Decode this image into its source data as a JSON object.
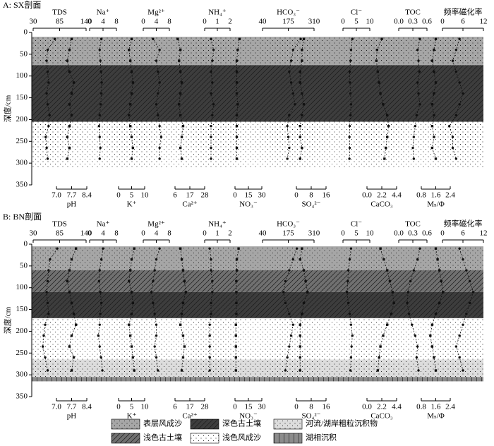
{
  "variables": [
    {
      "name": "TDS",
      "position": "top",
      "xlim": [
        30,
        140
      ],
      "xticks": [
        30,
        85,
        140
      ]
    },
    {
      "name": "Na⁺",
      "position": "top",
      "xlim": [
        0,
        8
      ],
      "xticks": [
        0,
        4,
        8
      ]
    },
    {
      "name": "Mg²⁺",
      "position": "top",
      "xlim": [
        0,
        8
      ],
      "xticks": [
        0,
        4,
        8
      ]
    },
    {
      "name": "NH₄⁺",
      "position": "top",
      "xlim": [
        0,
        2
      ],
      "xticks": [
        0,
        1,
        2
      ]
    },
    {
      "name": "HCO₃⁻",
      "position": "top",
      "xlim": [
        40,
        310
      ],
      "xticks": [
        40,
        175,
        310
      ]
    },
    {
      "name": "Cl⁻",
      "position": "top",
      "xlim": [
        0,
        10
      ],
      "xticks": [
        0,
        5,
        10
      ]
    },
    {
      "name": "TOC",
      "position": "top",
      "xlim": [
        0,
        0.6
      ],
      "xticks": [
        {
          "value": 0,
          "label": "0.0"
        },
        0.3,
        0.6
      ]
    },
    {
      "name": "频率磁化率",
      "position": "top",
      "xlim": [
        0,
        12
      ],
      "xticks": [
        0,
        6,
        12
      ]
    },
    {
      "name": "pH",
      "position": "bottom",
      "xlim": [
        7,
        8.4
      ],
      "xticks": [
        {
          "value": 7,
          "label": "7.0"
        },
        7.7,
        8.4
      ]
    },
    {
      "name": "K⁺",
      "position": "bottom",
      "xlim": [
        0,
        10
      ],
      "xticks": [
        0,
        5,
        10
      ]
    },
    {
      "name": "Ca²⁺",
      "position": "bottom",
      "xlim": [
        6,
        28
      ],
      "xticks": [
        6,
        17,
        28
      ]
    },
    {
      "name": "NO₃⁻",
      "position": "bottom",
      "xlim": [
        0,
        30
      ],
      "xticks": [
        0,
        15,
        30
      ]
    },
    {
      "name": "SO₄²⁻",
      "position": "bottom",
      "xlim": [
        0,
        16
      ],
      "xticks": [
        0,
        8,
        16
      ]
    },
    {
      "name": "CaCO₃",
      "position": "bottom",
      "xlim": [
        0,
        4.4
      ],
      "xticks": [
        {
          "value": 0,
          "label": "0.0"
        },
        2.2,
        4.4
      ]
    },
    {
      "name": "Mₛ/Φ",
      "position": "bottom",
      "xlim": [
        0.8,
        2.4
      ],
      "xticks": [
        0.8,
        1.6,
        2.4
      ]
    }
  ],
  "legend": [
    {
      "name": "表层风成沙",
      "color": "#a6a6a6",
      "pattern": "dots"
    },
    {
      "name": "深色古土壤",
      "color": "#3d3d3d",
      "pattern": "hatch"
    },
    {
      "name": "河流/湖岸粗粒沉积物",
      "color": "#dcdcdc",
      "pattern": "dots"
    },
    {
      "name": "浅色古土壤",
      "color": "#707070",
      "pattern": "hatch"
    },
    {
      "name": "浅色风成沙",
      "color": "#ffffff",
      "pattern": "dots"
    },
    {
      "name": "湖相沉积",
      "color": "#8c8c8c",
      "pattern": "vertical"
    }
  ],
  "marker_color": "#111111",
  "chart_data": [
    {
      "type": "profile",
      "title": "A: SX剖面",
      "ylabel": "深度/cm",
      "ylim": [
        0,
        350
      ],
      "yticks": [
        0,
        50,
        100,
        150,
        200,
        250,
        300,
        350
      ],
      "layers": [
        {
          "facies": "表层风成沙",
          "top": 10,
          "bottom": 75
        },
        {
          "facies": "深色古土壤",
          "top": 75,
          "bottom": 205
        },
        {
          "facies": "浅色风成沙",
          "top": 205,
          "bottom": 310
        }
      ],
      "depths": [
        15,
        40,
        65,
        90,
        115,
        140,
        165,
        190,
        215,
        240,
        265,
        290
      ],
      "series": [
        {
          "values": [
            75,
            60,
            58,
            60,
            62,
            58,
            60,
            64,
            62,
            56,
            58,
            60
          ]
        },
        {
          "values": [
            3.5,
            3.0,
            3.2,
            3.4,
            3.6,
            3.5,
            3.3,
            3.0,
            2.8,
            3.0,
            3.2,
            3.0
          ]
        },
        {
          "values": [
            3,
            5,
            4,
            4.5,
            5,
            4.5,
            4,
            4.5,
            5,
            5.5,
            5,
            5
          ]
        },
        {
          "values": [
            0.5,
            0.7,
            0.6,
            0.5,
            0.6,
            0.5,
            0.7,
            0.6,
            0.5,
            0.5,
            0.5,
            0.5
          ]
        },
        {
          "values": [
            240,
            200,
            190,
            180,
            190,
            200,
            210,
            180,
            170,
            175,
            180,
            170
          ]
        },
        {
          "values": [
            3.5,
            3.0,
            2.8,
            2.5,
            2.6,
            2.8,
            3.0,
            2.8,
            2.5,
            2.4,
            2.5,
            2.4
          ]
        },
        {
          "values": [
            0.45,
            0.4,
            0.42,
            0.44,
            0.4,
            0.42,
            0.45,
            0.38,
            0.35,
            0.32,
            0.3,
            0.32
          ]
        },
        {
          "values": [
            5,
            4,
            3,
            4,
            5,
            6,
            5,
            4,
            2,
            3,
            3,
            4
          ]
        },
        {
          "values": [
            7.7,
            7.6,
            7.5,
            7.6,
            7.8,
            7.7,
            7.6,
            7.7,
            7.6,
            7.5,
            7.6,
            7.5
          ]
        },
        {
          "values": [
            5,
            4,
            4.5,
            5,
            5.5,
            5,
            4.5,
            4,
            4.5,
            5,
            5.5,
            5
          ]
        },
        {
          "values": [
            8,
            10,
            9,
            10,
            11,
            10,
            9,
            10,
            12,
            11,
            10,
            11
          ]
        },
        {
          "values": [
            5,
            3,
            2,
            2,
            2,
            2,
            3,
            2,
            2,
            2,
            2,
            2
          ]
        },
        {
          "values": [
            4,
            3,
            3,
            2,
            2,
            3,
            4,
            3,
            2,
            2,
            3,
            2
          ]
        },
        {
          "values": [
            2.2,
            1.5,
            1.4,
            1.6,
            1.8,
            2.0,
            2.4,
            3.0,
            3.2,
            3.0,
            2.8,
            2.6
          ]
        },
        {
          "values": [
            1.6,
            1.5,
            1.4,
            1.5,
            1.6,
            1.5,
            1.4,
            1.5,
            1.4,
            1.5,
            1.4,
            1.6
          ]
        }
      ]
    },
    {
      "type": "profile",
      "title": "B: BN剖面",
      "ylabel": "深度/cm",
      "ylim": [
        0,
        350
      ],
      "yticks": [
        0,
        50,
        100,
        150,
        200,
        250,
        300,
        350
      ],
      "layers": [
        {
          "facies": "表层风成沙",
          "top": 5,
          "bottom": 60
        },
        {
          "facies": "浅色古土壤",
          "top": 60,
          "bottom": 110
        },
        {
          "facies": "深色古土壤",
          "top": 110,
          "bottom": 170
        },
        {
          "facies": "浅色风成沙",
          "top": 170,
          "bottom": 265
        },
        {
          "facies": "河流/湖岸粗粒沉积物",
          "top": 265,
          "bottom": 305
        },
        {
          "facies": "湖相沉积",
          "top": 305,
          "bottom": 315
        }
      ],
      "depths": [
        10,
        35,
        60,
        85,
        110,
        135,
        160,
        185,
        210,
        235,
        260,
        290
      ],
      "series": [
        {
          "values": [
            80,
            65,
            62,
            60,
            58,
            60,
            62,
            55,
            52,
            50,
            55,
            60
          ]
        },
        {
          "values": [
            4,
            3.5,
            3,
            2.8,
            3.2,
            3.5,
            3.2,
            3,
            2.6,
            3,
            3.4,
            3.8
          ]
        },
        {
          "values": [
            5,
            4,
            3.5,
            3,
            2.5,
            3,
            3.5,
            4,
            4,
            3.5,
            4,
            4.5
          ]
        },
        {
          "values": [
            0.4,
            0.5,
            0.5,
            0.6,
            0.6,
            0.5,
            0.5,
            0.4,
            0.4,
            0.4,
            0.4,
            0.4
          ]
        },
        {
          "values": [
            220,
            200,
            180,
            160,
            150,
            160,
            180,
            200,
            190,
            180,
            170,
            160
          ]
        },
        {
          "values": [
            3,
            2.5,
            2,
            1.8,
            1.5,
            2,
            2.5,
            3,
            3.5,
            3.2,
            3,
            2.8
          ]
        },
        {
          "values": [
            0.45,
            0.4,
            0.32,
            0.25,
            0.2,
            0.18,
            0.22,
            0.28,
            0.35,
            0.4,
            0.38,
            0.42
          ]
        },
        {
          "values": [
            5,
            6,
            7,
            8,
            9,
            8,
            7,
            6,
            5,
            4,
            5,
            6
          ]
        },
        {
          "values": [
            7.9,
            7.7,
            7.6,
            7.5,
            7.6,
            7.7,
            7.8,
            7.9,
            7.7,
            7.6,
            7.8,
            7.7
          ]
        },
        {
          "values": [
            6,
            5,
            4.5,
            4,
            5,
            5.5,
            5,
            4,
            4.5,
            5,
            5.5,
            6
          ]
        },
        {
          "values": [
            10,
            11,
            12,
            13,
            14,
            12,
            11,
            10,
            12,
            13,
            12,
            11
          ]
        },
        {
          "values": [
            4,
            2,
            2,
            1.5,
            1.5,
            1.5,
            1.5,
            1,
            1,
            1,
            1,
            1
          ]
        },
        {
          "values": [
            3,
            2,
            4,
            5,
            6,
            4,
            3,
            2,
            2,
            2,
            2,
            2
          ]
        },
        {
          "values": [
            2.0,
            2.5,
            3.0,
            3.4,
            3.8,
            4.0,
            3.6,
            3.0,
            2.4,
            2.0,
            1.8,
            1.6
          ]
        },
        {
          "values": [
            1.6,
            1.7,
            1.8,
            1.9,
            2.0,
            1.8,
            1.6,
            1.4,
            1.3,
            1.4,
            1.5,
            1.6
          ]
        }
      ]
    }
  ]
}
